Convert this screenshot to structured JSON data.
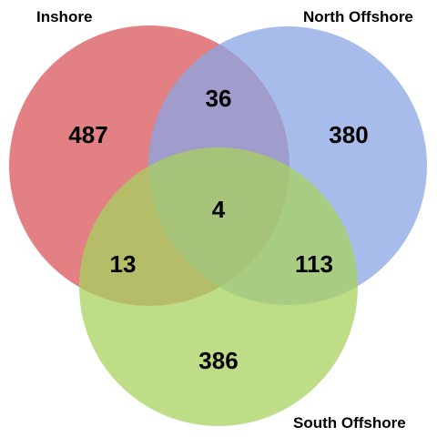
{
  "sets": [
    {
      "label": "Inshore",
      "color": "#d9555a"
    },
    {
      "label": "North Offshore",
      "color": "#8aa5e3"
    },
    {
      "label": "South Offshore",
      "color": "#a7d15f"
    }
  ],
  "regions": {
    "inshore_only": "487",
    "north_only": "380",
    "south_only": "386",
    "inshore_north": "36",
    "inshore_south": "13",
    "north_south": "113",
    "all_three": "4"
  }
}
